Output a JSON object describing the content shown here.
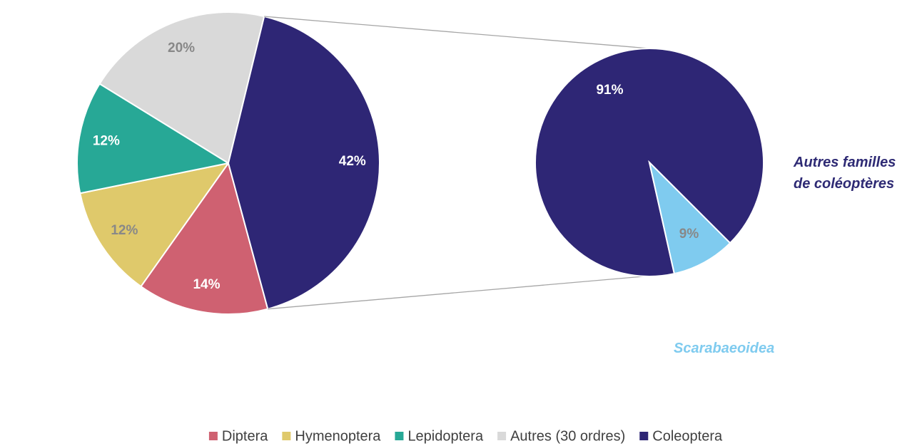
{
  "chart_data": {
    "type": "pie",
    "categories": [
      "Diptera",
      "Hymenoptera",
      "Lepidoptera",
      "Autres (30 ordres)",
      "Coleoptera"
    ],
    "values": [
      14,
      12,
      12,
      20,
      42
    ],
    "value_labels": [
      "14%",
      "12%",
      "12%",
      "20%",
      "42%"
    ],
    "colors": [
      "#cf6171",
      "#dfc96b",
      "#27a896",
      "#d9d9d9",
      "#2e2675"
    ],
    "legend": "bottom",
    "breakdown": {
      "type": "pie",
      "categories": [
        "Autres familles de coléoptères",
        "Scarabaeoidea"
      ],
      "values": [
        91,
        9
      ],
      "value_labels": [
        "91%",
        "9%"
      ],
      "colors": [
        "#2e2675",
        "#7fcbef"
      ]
    }
  }
}
